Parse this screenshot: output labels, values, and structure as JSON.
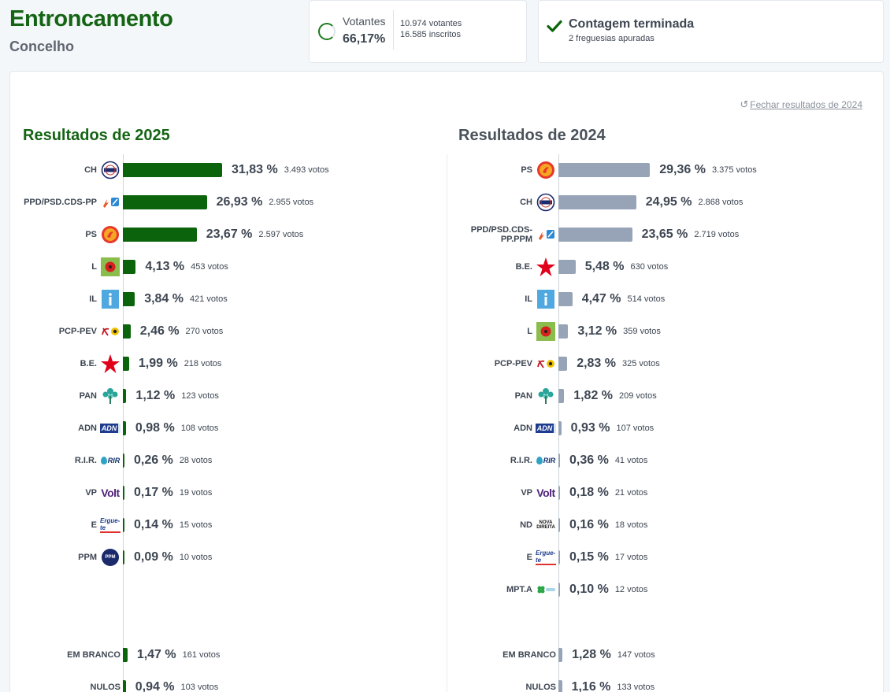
{
  "header": {
    "title": "Entroncamento",
    "subtitle": "Concelho"
  },
  "turnout": {
    "label": "Votantes",
    "percent": "66,17%",
    "voters": "10.974 votantes",
    "registered": "16.585 inscritos"
  },
  "count": {
    "title": "Contagem terminada",
    "subtitle": "2 freguesias apuradas"
  },
  "close_link": "Fechar resultados de 2024",
  "results_2025": {
    "title": "Resultados de 2025",
    "rows": [
      {
        "party": "CH",
        "pct": "31,83 %",
        "votes": "3.493 votos",
        "value": 31.83,
        "logo": "chega-logo"
      },
      {
        "party": "PPD/PSD.CDS-PP",
        "pct": "26,93 %",
        "votes": "2.955 votos",
        "value": 26.93,
        "logo": "ad-logo"
      },
      {
        "party": "PS",
        "pct": "23,67 %",
        "votes": "2.597 votos",
        "value": 23.67,
        "logo": "ps-logo"
      },
      {
        "party": "L",
        "pct": "4,13 %",
        "votes": "453 votos",
        "value": 4.13,
        "logo": "livre-logo"
      },
      {
        "party": "IL",
        "pct": "3,84 %",
        "votes": "421 votos",
        "value": 3.84,
        "logo": "il-logo"
      },
      {
        "party": "PCP-PEV",
        "pct": "2,46 %",
        "votes": "270 votos",
        "value": 2.46,
        "logo": "cdu-logo"
      },
      {
        "party": "B.E.",
        "pct": "1,99 %",
        "votes": "218 votos",
        "value": 1.99,
        "logo": "be-logo"
      },
      {
        "party": "PAN",
        "pct": "1,12 %",
        "votes": "123 votos",
        "value": 1.12,
        "logo": "pan-logo"
      },
      {
        "party": "ADN",
        "pct": "0,98 %",
        "votes": "108 votos",
        "value": 0.98,
        "logo": "adn-logo",
        "logo_text": "ADN"
      },
      {
        "party": "R.I.R.",
        "pct": "0,26 %",
        "votes": "28 votos",
        "value": 0.26,
        "logo": "rir-logo",
        "logo_text": "RIR"
      },
      {
        "party": "VP",
        "pct": "0,17 %",
        "votes": "19 votos",
        "value": 0.17,
        "logo": "volt-logo",
        "logo_text": "Volt"
      },
      {
        "party": "E",
        "pct": "0,14 %",
        "votes": "15 votos",
        "value": 0.14,
        "logo": "ergue-te-logo",
        "logo_text": "Ergue-te"
      },
      {
        "party": "PPM",
        "pct": "0,09 %",
        "votes": "10 votos",
        "value": 0.09,
        "logo": "ppm-logo",
        "logo_text": "PPM"
      }
    ],
    "special": [
      {
        "party": "EM BRANCO",
        "pct": "1,47 %",
        "votes": "161 votos",
        "value": 1.47
      },
      {
        "party": "NULOS",
        "pct": "0,94 %",
        "votes": "103 votos",
        "value": 0.94
      }
    ]
  },
  "results_2024": {
    "title": "Resultados de 2024",
    "rows": [
      {
        "party": "PS",
        "pct": "29,36 %",
        "votes": "3.375 votos",
        "value": 29.36,
        "logo": "ps-logo"
      },
      {
        "party": "CH",
        "pct": "24,95 %",
        "votes": "2.868 votos",
        "value": 24.95,
        "logo": "chega-logo"
      },
      {
        "party": "PPD/PSD.CDS-PP.PPM",
        "pct": "23,65 %",
        "votes": "2.719 votos",
        "value": 23.65,
        "logo": "ad-logo"
      },
      {
        "party": "B.E.",
        "pct": "5,48 %",
        "votes": "630 votos",
        "value": 5.48,
        "logo": "be-logo"
      },
      {
        "party": "IL",
        "pct": "4,47 %",
        "votes": "514 votos",
        "value": 4.47,
        "logo": "il-logo"
      },
      {
        "party": "L",
        "pct": "3,12 %",
        "votes": "359 votos",
        "value": 3.12,
        "logo": "livre-logo"
      },
      {
        "party": "PCP-PEV",
        "pct": "2,83 %",
        "votes": "325 votos",
        "value": 2.83,
        "logo": "cdu-logo"
      },
      {
        "party": "PAN",
        "pct": "1,82 %",
        "votes": "209 votos",
        "value": 1.82,
        "logo": "pan-logo"
      },
      {
        "party": "ADN",
        "pct": "0,93 %",
        "votes": "107 votos",
        "value": 0.93,
        "logo": "adn-logo",
        "logo_text": "ADN"
      },
      {
        "party": "R.I.R.",
        "pct": "0,36 %",
        "votes": "41 votos",
        "value": 0.36,
        "logo": "rir-logo",
        "logo_text": "RIR"
      },
      {
        "party": "VP",
        "pct": "0,18 %",
        "votes": "21 votos",
        "value": 0.18,
        "logo": "volt-logo",
        "logo_text": "Volt"
      },
      {
        "party": "ND",
        "pct": "0,16 %",
        "votes": "18 votos",
        "value": 0.16,
        "logo": "nova-direita-logo",
        "logo_text": "NOVA DIREITA"
      },
      {
        "party": "E",
        "pct": "0,15 %",
        "votes": "17 votos",
        "value": 0.15,
        "logo": "ergue-te-logo",
        "logo_text": "Ergue-te"
      },
      {
        "party": "MPT.A",
        "pct": "0,10 %",
        "votes": "12 votos",
        "value": 0.1,
        "logo": "mpt-logo"
      }
    ],
    "special": [
      {
        "party": "EM BRANCO",
        "pct": "1,28 %",
        "votes": "147 votos",
        "value": 1.28
      },
      {
        "party": "NULOS",
        "pct": "1,16 %",
        "votes": "133 votos",
        "value": 1.16
      }
    ]
  },
  "colors": {
    "bar_2025": "#0b640b",
    "bar_2024": "#97a4b8",
    "title_green": "#146414"
  }
}
